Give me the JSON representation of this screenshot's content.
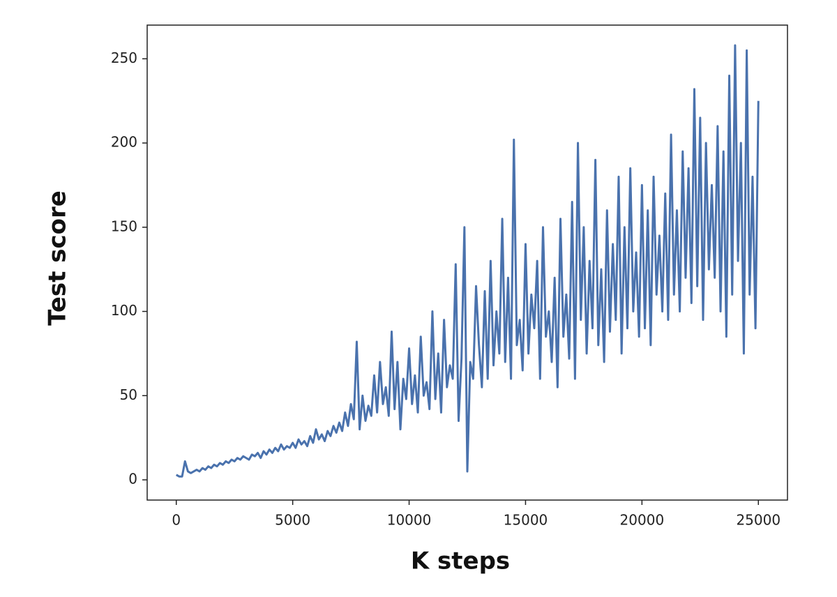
{
  "chart_data": {
    "type": "line",
    "xlabel": "K steps",
    "ylabel": "Test score",
    "color": "#4a72ad",
    "grid": false,
    "xlim": [
      -1250,
      26250
    ],
    "ylim": [
      -12,
      270
    ],
    "xticks": [
      0,
      5000,
      10000,
      15000,
      20000,
      25000
    ],
    "yticks": [
      0,
      50,
      100,
      150,
      200,
      250
    ],
    "x": [
      0,
      125,
      250,
      375,
      500,
      625,
      750,
      875,
      1000,
      1125,
      1250,
      1375,
      1500,
      1625,
      1750,
      1875,
      2000,
      2125,
      2250,
      2375,
      2500,
      2625,
      2750,
      2875,
      3000,
      3125,
      3250,
      3375,
      3500,
      3625,
      3750,
      3875,
      4000,
      4125,
      4250,
      4375,
      4500,
      4625,
      4750,
      4875,
      5000,
      5125,
      5250,
      5375,
      5500,
      5625,
      5750,
      5875,
      6000,
      6125,
      6250,
      6375,
      6500,
      6625,
      6750,
      6875,
      7000,
      7125,
      7250,
      7375,
      7500,
      7625,
      7750,
      7875,
      8000,
      8125,
      8250,
      8375,
      8500,
      8625,
      8750,
      8875,
      9000,
      9125,
      9250,
      9375,
      9500,
      9625,
      9750,
      9875,
      10000,
      10125,
      10250,
      10375,
      10500,
      10625,
      10750,
      10875,
      11000,
      11125,
      11250,
      11375,
      11500,
      11625,
      11750,
      11875,
      12000,
      12125,
      12250,
      12375,
      12500,
      12625,
      12750,
      12875,
      13000,
      13125,
      13250,
      13375,
      13500,
      13625,
      13750,
      13875,
      14000,
      14125,
      14250,
      14375,
      14500,
      14625,
      14750,
      14875,
      15000,
      15125,
      15250,
      15375,
      15500,
      15625,
      15750,
      15875,
      16000,
      16125,
      16250,
      16375,
      16500,
      16625,
      16750,
      16875,
      17000,
      17125,
      17250,
      17375,
      17500,
      17625,
      17750,
      17875,
      18000,
      18125,
      18250,
      18375,
      18500,
      18625,
      18750,
      18875,
      19000,
      19125,
      19250,
      19375,
      19500,
      19625,
      19750,
      19875,
      20000,
      20125,
      20250,
      20375,
      20500,
      20625,
      20750,
      20875,
      21000,
      21125,
      21250,
      21375,
      21500,
      21625,
      21750,
      21875,
      22000,
      22125,
      22250,
      22375,
      22500,
      22625,
      22750,
      22875,
      23000,
      23125,
      23250,
      23375,
      23500,
      23625,
      23750,
      23875,
      24000,
      24125,
      24250,
      24375,
      24500,
      24625,
      24750,
      24875,
      25000
    ],
    "values": [
      3,
      2,
      2,
      11,
      5,
      4,
      5,
      6,
      5,
      7,
      6,
      8,
      7,
      9,
      8,
      10,
      9,
      11,
      10,
      12,
      11,
      13,
      12,
      14,
      13,
      12,
      15,
      14,
      16,
      13,
      17,
      15,
      18,
      16,
      19,
      17,
      21,
      18,
      20,
      19,
      22,
      19,
      24,
      21,
      23,
      20,
      26,
      22,
      30,
      24,
      27,
      23,
      29,
      26,
      32,
      28,
      34,
      29,
      40,
      32,
      45,
      36,
      82,
      30,
      50,
      35,
      44,
      38,
      62,
      40,
      70,
      45,
      55,
      38,
      88,
      42,
      70,
      30,
      60,
      48,
      78,
      45,
      62,
      40,
      85,
      50,
      58,
      42,
      100,
      48,
      75,
      40,
      95,
      55,
      68,
      60,
      128,
      35,
      72,
      150,
      5,
      70,
      60,
      115,
      80,
      55,
      112,
      60,
      130,
      68,
      100,
      75,
      155,
      70,
      120,
      60,
      202,
      80,
      95,
      65,
      140,
      75,
      110,
      90,
      130,
      60,
      150,
      85,
      100,
      70,
      120,
      55,
      155,
      85,
      110,
      72,
      165,
      60,
      200,
      95,
      150,
      75,
      130,
      90,
      190,
      80,
      125,
      70,
      160,
      88,
      140,
      95,
      180,
      75,
      150,
      90,
      185,
      100,
      135,
      85,
      175,
      90,
      160,
      80,
      180,
      110,
      145,
      100,
      170,
      95,
      205,
      110,
      160,
      100,
      195,
      120,
      185,
      105,
      232,
      115,
      215,
      95,
      200,
      125,
      175,
      120,
      210,
      100,
      195,
      85,
      240,
      110,
      258,
      130,
      200,
      75,
      255,
      110,
      180,
      90,
      225
    ]
  }
}
